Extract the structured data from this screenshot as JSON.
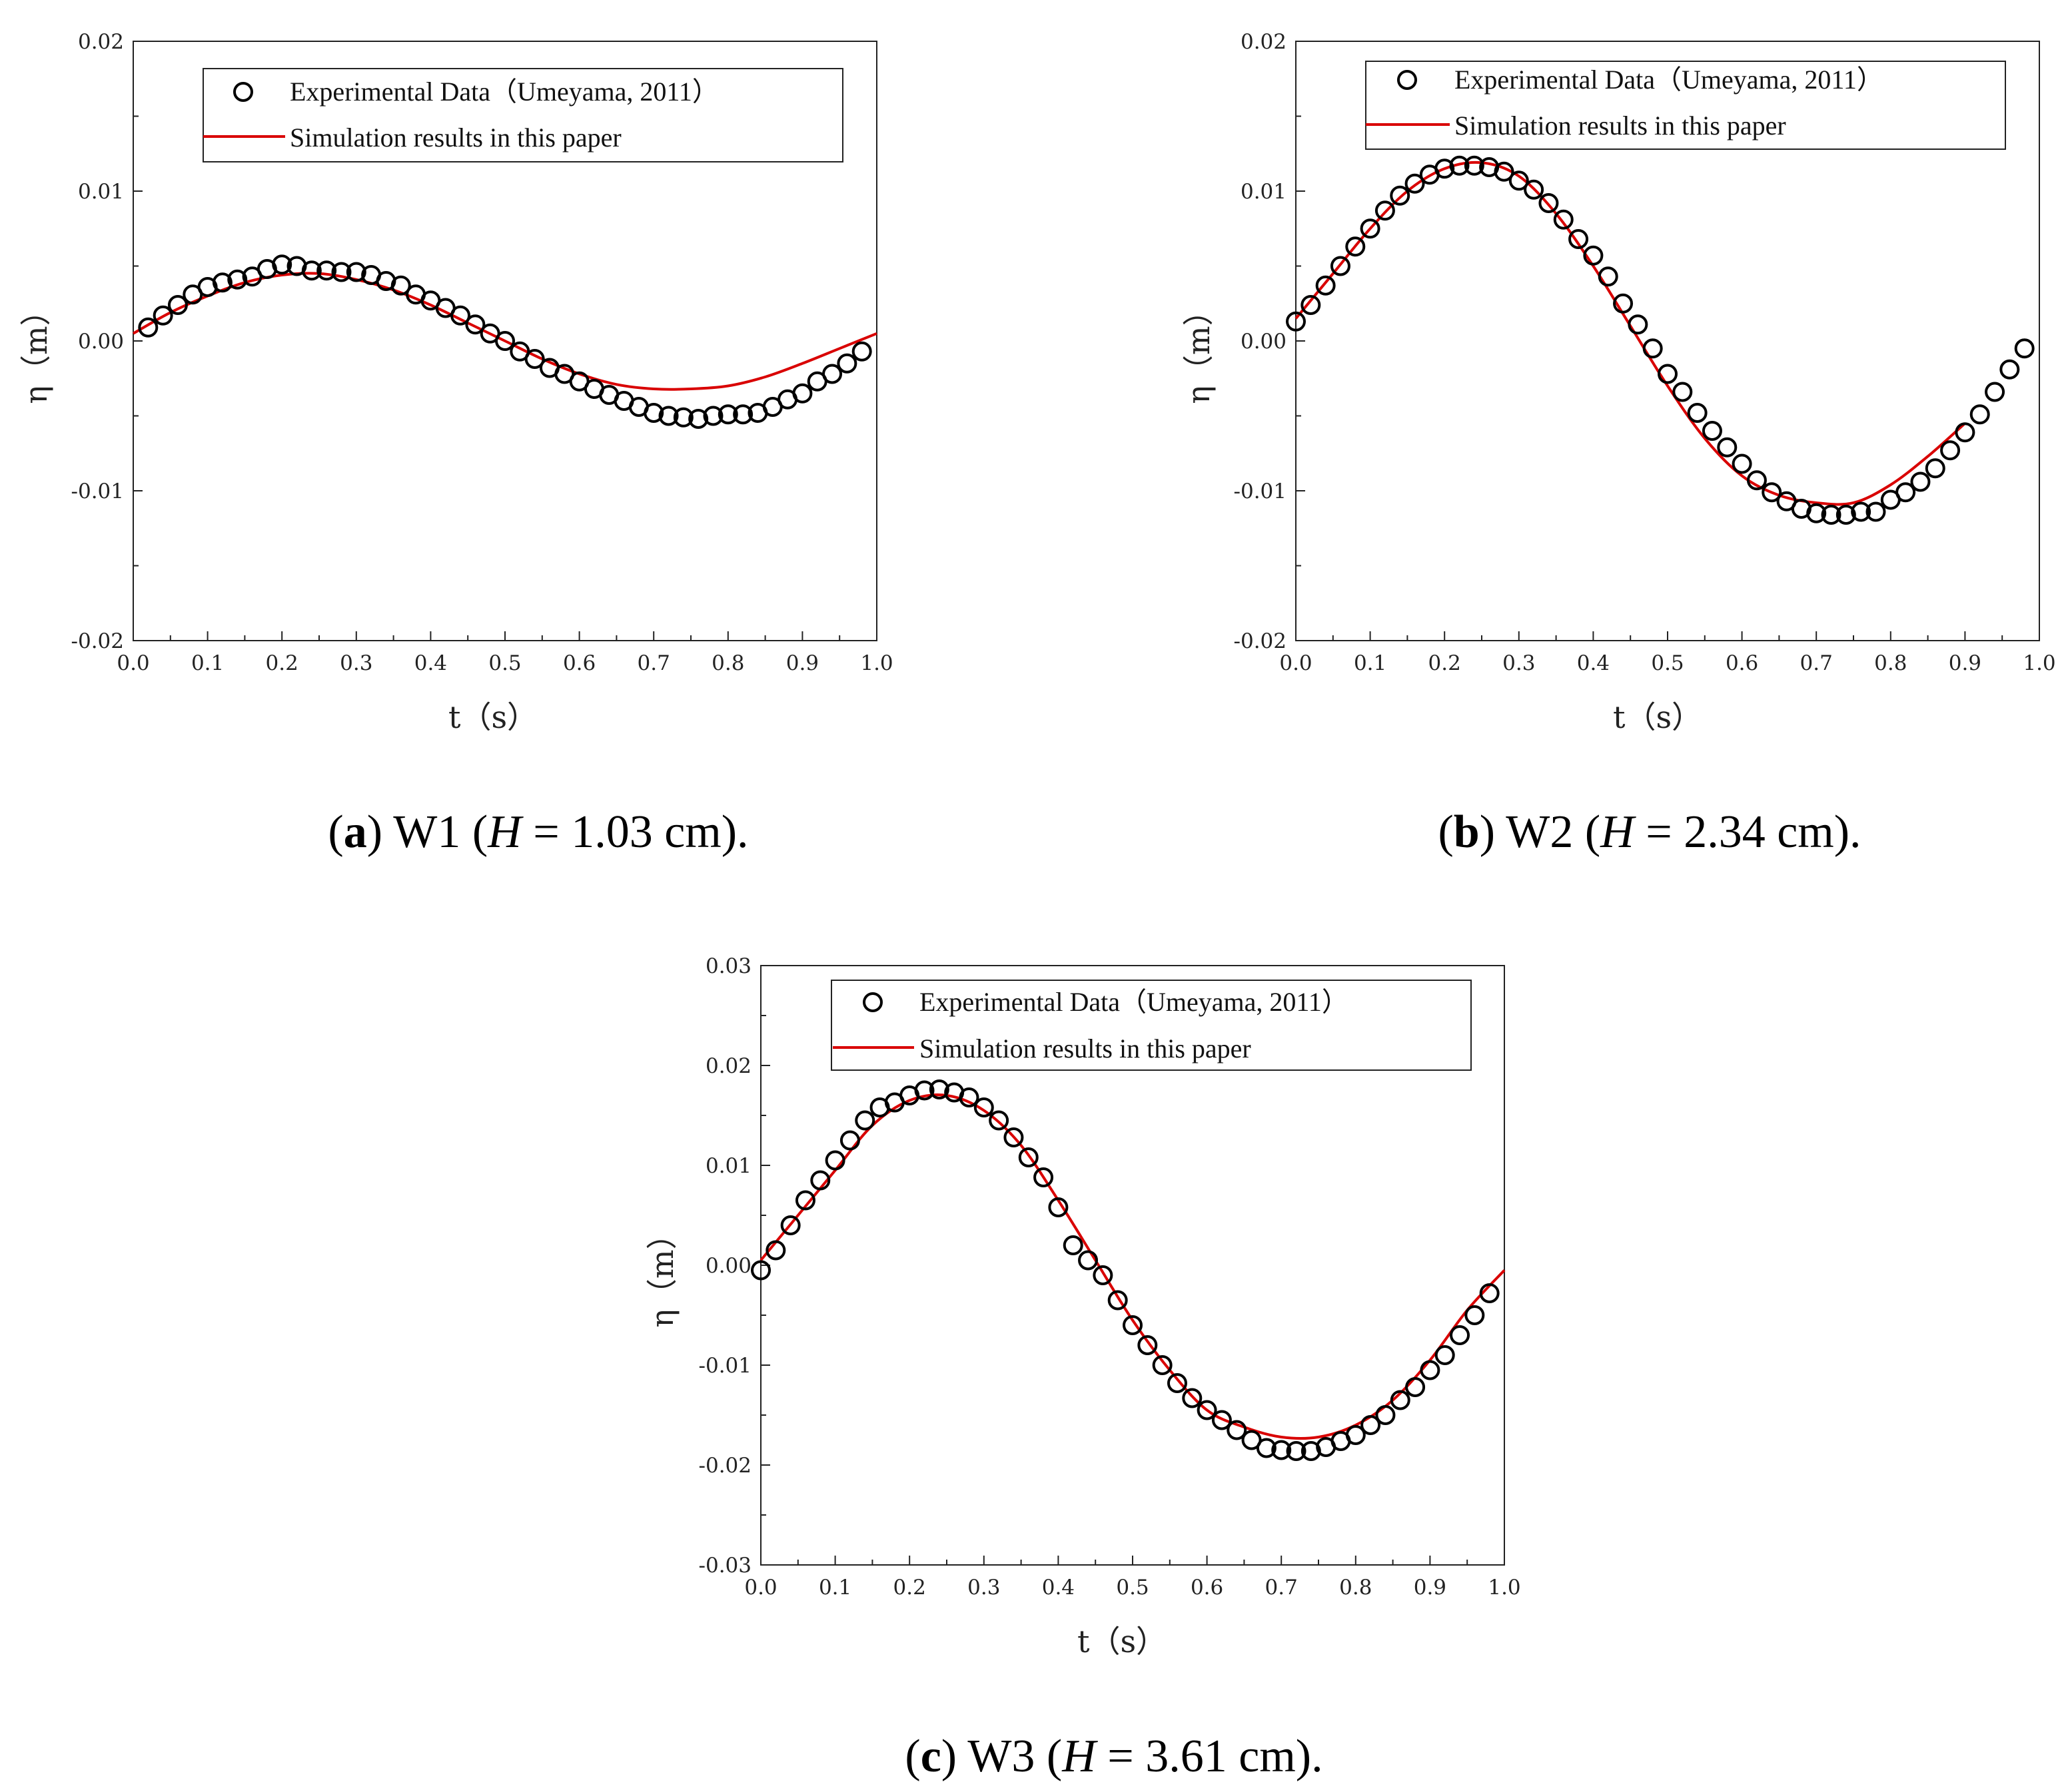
{
  "colors": {
    "simulation": "#d90000",
    "experimental": "#000000",
    "axis": "#222222"
  },
  "chart_data": [
    {
      "id": "a",
      "type": "line",
      "xlabel": "t（s）",
      "ylabel": "η（m）",
      "xlim": [
        0.0,
        1.0
      ],
      "ylim": [
        -0.02,
        0.02
      ],
      "xticks": [
        "0.0",
        "0.1",
        "0.2",
        "0.3",
        "0.4",
        "0.5",
        "0.6",
        "0.7",
        "0.8",
        "0.9",
        "1.0"
      ],
      "yticks": [
        "-0.02",
        "-0.01",
        "0.00",
        "0.01",
        "0.02"
      ],
      "legend": {
        "position": "top-right",
        "experimental": "Experimental Data（Umeyama, 2011）",
        "simulation": "Simulation results in this paper"
      },
      "caption": {
        "letter": "a",
        "name": "W1",
        "var": "H",
        "value": "1.03 cm"
      },
      "series": [
        {
          "name": "Experimental Data（Umeyama, 2011）",
          "style": "open-circle",
          "x": [
            0.02,
            0.04,
            0.06,
            0.08,
            0.1,
            0.12,
            0.14,
            0.16,
            0.18,
            0.2,
            0.22,
            0.24,
            0.26,
            0.28,
            0.3,
            0.32,
            0.34,
            0.36,
            0.38,
            0.4,
            0.42,
            0.44,
            0.46,
            0.48,
            0.5,
            0.52,
            0.54,
            0.56,
            0.58,
            0.6,
            0.62,
            0.64,
            0.66,
            0.68,
            0.7,
            0.72,
            0.74,
            0.76,
            0.78,
            0.8,
            0.82,
            0.84,
            0.86,
            0.88,
            0.9,
            0.92,
            0.94,
            0.96,
            0.98
          ],
          "y": [
            0.0009,
            0.0017,
            0.0024,
            0.0031,
            0.0036,
            0.0039,
            0.0041,
            0.0043,
            0.0048,
            0.0051,
            0.005,
            0.0047,
            0.0047,
            0.0046,
            0.0046,
            0.0044,
            0.004,
            0.0037,
            0.0031,
            0.0027,
            0.0022,
            0.0017,
            0.0011,
            0.0005,
            0.0,
            -0.0007,
            -0.0012,
            -0.0018,
            -0.0022,
            -0.0027,
            -0.0032,
            -0.0036,
            -0.004,
            -0.0044,
            -0.0048,
            -0.005,
            -0.0051,
            -0.0052,
            -0.005,
            -0.0049,
            -0.0049,
            -0.0048,
            -0.0044,
            -0.0039,
            -0.0035,
            -0.0027,
            -0.0022,
            -0.0015,
            -0.0007
          ]
        },
        {
          "name": "Simulation results in this paper",
          "style": "line",
          "x": [
            0.0,
            0.05,
            0.1,
            0.15,
            0.2,
            0.25,
            0.3,
            0.35,
            0.4,
            0.45,
            0.5,
            0.55,
            0.6,
            0.65,
            0.7,
            0.75,
            0.8,
            0.85,
            0.9,
            0.95,
            1.0
          ],
          "y": [
            0.0005,
            0.0019,
            0.003,
            0.0039,
            0.0044,
            0.0045,
            0.0041,
            0.0034,
            0.0024,
            0.0012,
            0.0,
            -0.0012,
            -0.0022,
            -0.0029,
            -0.0032,
            -0.0032,
            -0.003,
            -0.0024,
            -0.0015,
            -0.0005,
            0.0005
          ]
        }
      ]
    },
    {
      "id": "b",
      "type": "line",
      "xlabel": "t（s）",
      "ylabel": "η（m）",
      "xlim": [
        0.0,
        1.0
      ],
      "ylim": [
        -0.02,
        0.02
      ],
      "xticks": [
        "0.0",
        "0.1",
        "0.2",
        "0.3",
        "0.4",
        "0.5",
        "0.6",
        "0.7",
        "0.8",
        "0.9",
        "1.0"
      ],
      "yticks": [
        "-0.02",
        "-0.01",
        "0.00",
        "0.01",
        "0.02"
      ],
      "legend": {
        "position": "top-right",
        "experimental": "Experimental Data（Umeyama, 2011）",
        "simulation": "Simulation results in this paper"
      },
      "caption": {
        "letter": "b",
        "name": "W2",
        "var": "H",
        "value": "2.34 cm"
      },
      "series": [
        {
          "name": "Experimental Data（Umeyama, 2011）",
          "style": "open-circle",
          "x": [
            0.0,
            0.02,
            0.04,
            0.06,
            0.08,
            0.1,
            0.12,
            0.14,
            0.16,
            0.18,
            0.2,
            0.22,
            0.24,
            0.26,
            0.28,
            0.3,
            0.32,
            0.34,
            0.36,
            0.38,
            0.4,
            0.42,
            0.44,
            0.46,
            0.48,
            0.5,
            0.52,
            0.54,
            0.56,
            0.58,
            0.6,
            0.62,
            0.64,
            0.66,
            0.68,
            0.7,
            0.72,
            0.74,
            0.76,
            0.78,
            0.8,
            0.82,
            0.84,
            0.86,
            0.88,
            0.9,
            0.92,
            0.94,
            0.96,
            0.98
          ],
          "y": [
            0.0013,
            0.0024,
            0.0037,
            0.005,
            0.0063,
            0.0075,
            0.0087,
            0.0097,
            0.0105,
            0.0111,
            0.0115,
            0.0117,
            0.0117,
            0.0116,
            0.0113,
            0.0107,
            0.0101,
            0.0092,
            0.0081,
            0.0068,
            0.0057,
            0.0043,
            0.0025,
            0.0011,
            -0.0005,
            -0.0022,
            -0.0034,
            -0.0048,
            -0.006,
            -0.0071,
            -0.0082,
            -0.0093,
            -0.0101,
            -0.0107,
            -0.0112,
            -0.0115,
            -0.0116,
            -0.0116,
            -0.0114,
            -0.0114,
            -0.0106,
            -0.0101,
            -0.0094,
            -0.0085,
            -0.0073,
            -0.0061,
            -0.0049,
            -0.0034,
            -0.0019,
            -0.0005
          ]
        },
        {
          "name": "Simulation results in this paper",
          "style": "line",
          "x": [
            0.0,
            0.05,
            0.1,
            0.15,
            0.2,
            0.25,
            0.3,
            0.35,
            0.4,
            0.45,
            0.5,
            0.55,
            0.6,
            0.65,
            0.7,
            0.75,
            0.8,
            0.85,
            0.9
          ],
          "y": [
            0.0015,
            0.0045,
            0.0075,
            0.01,
            0.0115,
            0.0119,
            0.011,
            0.0085,
            0.005,
            0.001,
            -0.003,
            -0.0065,
            -0.009,
            -0.0103,
            -0.0108,
            -0.0108,
            -0.0096,
            -0.0077,
            -0.0055
          ]
        }
      ]
    },
    {
      "id": "c",
      "type": "line",
      "xlabel": "t（s）",
      "ylabel": "η（m）",
      "xlim": [
        0.0,
        1.0
      ],
      "ylim": [
        -0.03,
        0.03
      ],
      "xticks": [
        "0.0",
        "0.1",
        "0.2",
        "0.3",
        "0.4",
        "0.5",
        "0.6",
        "0.7",
        "0.8",
        "0.9",
        "1.0"
      ],
      "yticks": [
        "-0.03",
        "-0.02",
        "-0.01",
        "0.00",
        "0.01",
        "0.02",
        "0.03"
      ],
      "legend": {
        "position": "top-right",
        "experimental": "Experimental Data（Umeyama, 2011）",
        "simulation": "Simulation results in this paper"
      },
      "caption": {
        "letter": "c",
        "name": "W3",
        "var": "H",
        "value": "3.61 cm"
      },
      "series": [
        {
          "name": "Experimental Data（Umeyama, 2011）",
          "style": "open-circle",
          "x": [
            0.0,
            0.02,
            0.04,
            0.06,
            0.08,
            0.1,
            0.12,
            0.14,
            0.16,
            0.18,
            0.2,
            0.22,
            0.24,
            0.26,
            0.28,
            0.3,
            0.32,
            0.34,
            0.36,
            0.38,
            0.4,
            0.42,
            0.44,
            0.46,
            0.48,
            0.5,
            0.52,
            0.54,
            0.56,
            0.58,
            0.6,
            0.62,
            0.64,
            0.66,
            0.68,
            0.7,
            0.72,
            0.74,
            0.76,
            0.78,
            0.8,
            0.82,
            0.84,
            0.86,
            0.88,
            0.9,
            0.92,
            0.94,
            0.96,
            0.98
          ],
          "y": [
            -0.0005,
            0.0015,
            0.004,
            0.0065,
            0.0085,
            0.0105,
            0.0125,
            0.0145,
            0.0158,
            0.0163,
            0.017,
            0.0175,
            0.0176,
            0.0173,
            0.0168,
            0.0158,
            0.0145,
            0.0128,
            0.0108,
            0.0088,
            0.0058,
            0.002,
            0.0005,
            -0.001,
            -0.0035,
            -0.006,
            -0.008,
            -0.01,
            -0.0118,
            -0.0133,
            -0.0145,
            -0.0155,
            -0.0165,
            -0.0175,
            -0.0183,
            -0.0185,
            -0.0186,
            -0.0186,
            -0.0182,
            -0.0176,
            -0.017,
            -0.016,
            -0.015,
            -0.0135,
            -0.0122,
            -0.0105,
            -0.009,
            -0.007,
            -0.005,
            -0.0028
          ]
        },
        {
          "name": "Simulation results in this paper",
          "style": "line",
          "x": [
            0.0,
            0.05,
            0.1,
            0.15,
            0.2,
            0.25,
            0.3,
            0.35,
            0.4,
            0.45,
            0.5,
            0.55,
            0.6,
            0.65,
            0.7,
            0.75,
            0.8,
            0.85,
            0.9,
            0.95,
            1.0
          ],
          "y": [
            0.0005,
            0.005,
            0.0095,
            0.014,
            0.0165,
            0.017,
            0.0155,
            0.012,
            0.0065,
            0.0005,
            -0.0055,
            -0.0105,
            -0.0145,
            -0.0162,
            -0.0172,
            -0.0172,
            -0.016,
            -0.0135,
            -0.0095,
            -0.0045,
            -0.0005
          ]
        }
      ]
    }
  ]
}
